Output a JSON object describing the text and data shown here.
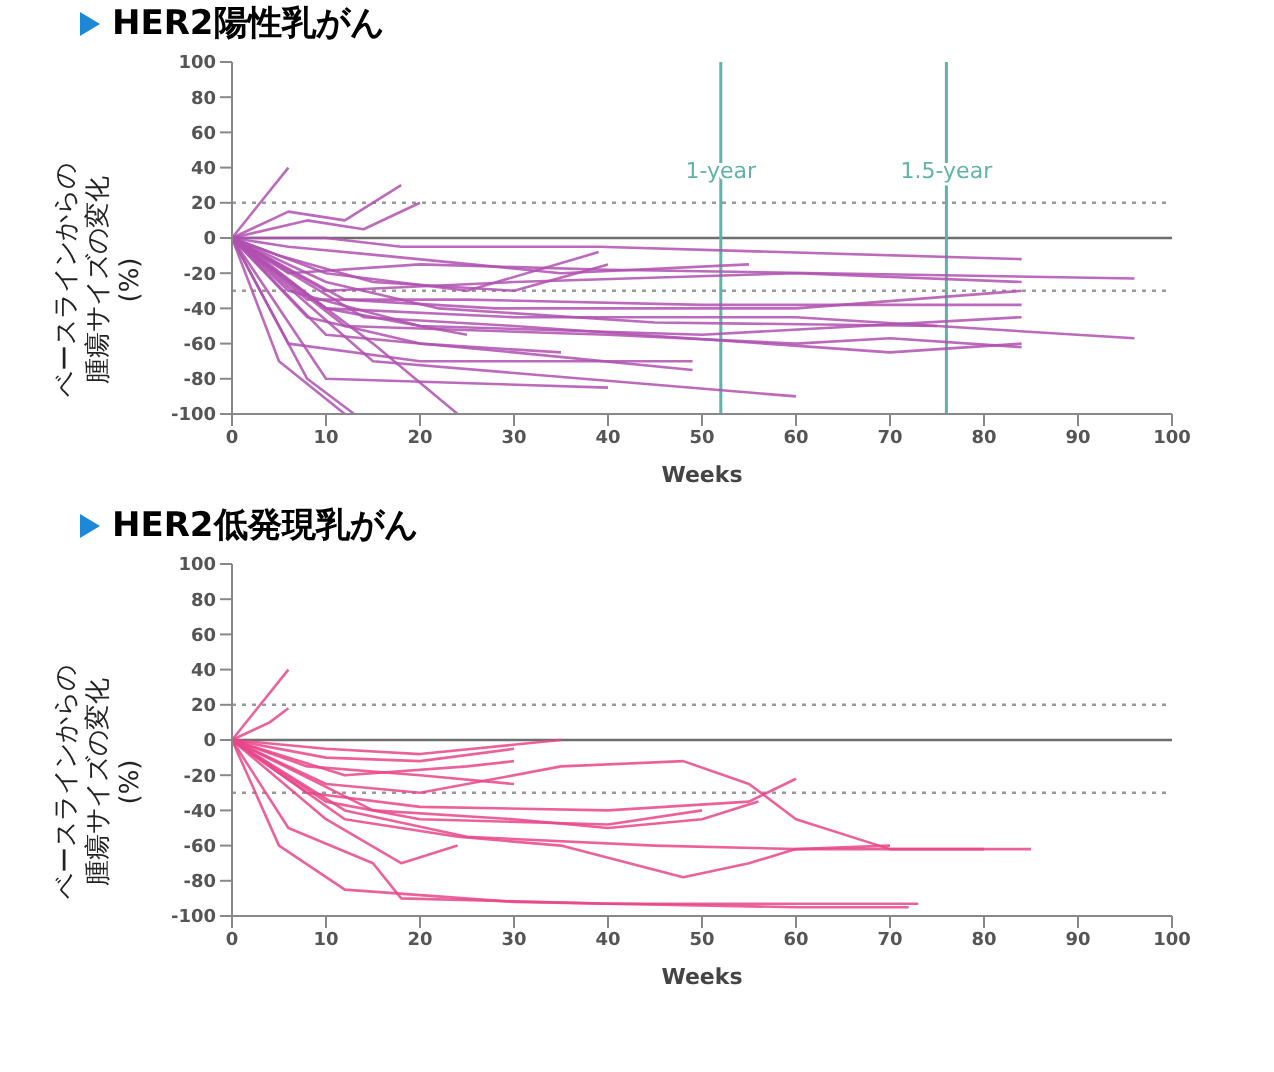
{
  "chart_data": [
    {
      "type": "line",
      "title": "HER2陽性乳がん",
      "xlabel": "Weeks",
      "ylabel": "ベースラインからの腫瘍サイズの変化(%)",
      "xlim": [
        0,
        100
      ],
      "ylim": [
        -100,
        100
      ],
      "xticks": [
        0,
        10,
        20,
        30,
        40,
        50,
        60,
        70,
        80,
        90,
        100
      ],
      "yticks": [
        -100,
        -80,
        -60,
        -40,
        -20,
        0,
        20,
        40,
        60,
        80,
        100
      ],
      "marker": "none",
      "line_style": "solid",
      "ref_lines": [
        {
          "axis": "y",
          "value": 0,
          "color": "#6e6e6e",
          "line_style": "solid"
        },
        {
          "axis": "y",
          "value": 20,
          "color": "#9a9a9a",
          "line_style": "dotted"
        },
        {
          "axis": "y",
          "value": -30,
          "color": "#9a9a9a",
          "line_style": "dotted"
        },
        {
          "axis": "x",
          "value": 52,
          "label": "1-year",
          "color": "#5fb3a8",
          "line_style": "solid"
        },
        {
          "axis": "x",
          "value": 76,
          "label": "1.5-year",
          "color": "#5fb3a8",
          "line_style": "solid"
        }
      ],
      "series": [
        {
          "color": "#b050b0",
          "x": [
            0,
            6
          ],
          "values": [
            0,
            40
          ]
        },
        {
          "color": "#b050b0",
          "x": [
            0,
            6,
            12,
            18
          ],
          "values": [
            0,
            15,
            10,
            30
          ]
        },
        {
          "color": "#b050b0",
          "x": [
            0,
            8,
            14,
            20
          ],
          "values": [
            0,
            10,
            5,
            20
          ]
        },
        {
          "color": "#b050b0",
          "x": [
            0,
            10,
            18,
            39,
            84
          ],
          "values": [
            0,
            0,
            -5,
            -5,
            -12
          ]
        },
        {
          "color": "#b050b0",
          "x": [
            0,
            6,
            20,
            40,
            96
          ],
          "values": [
            0,
            -20,
            -15,
            -18,
            -23
          ]
        },
        {
          "color": "#b050b0",
          "x": [
            0,
            10,
            30,
            60,
            84
          ],
          "values": [
            0,
            -30,
            -25,
            -20,
            -25
          ]
        },
        {
          "color": "#b050b0",
          "x": [
            0,
            8,
            25,
            50,
            84
          ],
          "values": [
            0,
            -35,
            -35,
            -38,
            -38
          ]
        },
        {
          "color": "#b050b0",
          "x": [
            0,
            10,
            30,
            60,
            96
          ],
          "values": [
            0,
            -40,
            -45,
            -45,
            -57
          ]
        },
        {
          "color": "#b050b0",
          "x": [
            0,
            12,
            40,
            60,
            70,
            84
          ],
          "values": [
            0,
            -50,
            -55,
            -60,
            -57,
            -62
          ]
        },
        {
          "color": "#b050b0",
          "x": [
            0,
            10,
            30,
            49
          ],
          "values": [
            0,
            -55,
            -65,
            -75
          ]
        },
        {
          "color": "#b050b0",
          "x": [
            0,
            5,
            12
          ],
          "values": [
            0,
            -70,
            -100
          ]
        },
        {
          "color": "#b050b0",
          "x": [
            0,
            8,
            13
          ],
          "values": [
            0,
            -80,
            -100
          ]
        },
        {
          "color": "#b050b0",
          "x": [
            0,
            15,
            24
          ],
          "values": [
            0,
            -60,
            -100
          ]
        },
        {
          "color": "#b050b0",
          "x": [
            0,
            15,
            60
          ],
          "values": [
            0,
            -70,
            -90
          ]
        },
        {
          "color": "#b050b0",
          "x": [
            0,
            10,
            40
          ],
          "values": [
            0,
            -80,
            -85
          ]
        },
        {
          "color": "#b050b0",
          "x": [
            0,
            6,
            20,
            50,
            84
          ],
          "values": [
            0,
            -30,
            -50,
            -55,
            -45
          ]
        },
        {
          "color": "#b050b0",
          "x": [
            0,
            5,
            15,
            30,
            40
          ],
          "values": [
            0,
            -10,
            -25,
            -30,
            -15
          ]
        },
        {
          "color": "#b050b0",
          "x": [
            0,
            10,
            25,
            39
          ],
          "values": [
            0,
            -20,
            -30,
            -8
          ]
        },
        {
          "color": "#b050b0",
          "x": [
            0,
            8,
            20,
            35
          ],
          "values": [
            0,
            -45,
            -60,
            -65
          ]
        },
        {
          "color": "#b050b0",
          "x": [
            0,
            12,
            28,
            60,
            84
          ],
          "values": [
            0,
            -35,
            -40,
            -40,
            -30
          ]
        },
        {
          "color": "#b050b0",
          "x": [
            0,
            6,
            20,
            49
          ],
          "values": [
            0,
            -60,
            -70,
            -70
          ]
        },
        {
          "color": "#b050b0",
          "x": [
            0,
            10,
            22,
            45,
            75
          ],
          "values": [
            0,
            -25,
            -40,
            -48,
            -50
          ]
        },
        {
          "color": "#b050b0",
          "x": [
            0,
            4,
            10,
            25
          ],
          "values": [
            0,
            -15,
            -40,
            -55
          ]
        },
        {
          "color": "#b050b0",
          "x": [
            0,
            14,
            30,
            70,
            84
          ],
          "values": [
            0,
            -45,
            -50,
            -65,
            -60
          ]
        },
        {
          "color": "#b050b0",
          "x": [
            0,
            6,
            16,
            35,
            55
          ],
          "values": [
            0,
            -5,
            -10,
            -20,
            -15
          ]
        }
      ]
    },
    {
      "type": "line",
      "title": "HER2低発現乳がん",
      "xlabel": "Weeks",
      "ylabel": "ベースラインからの腫瘍サイズの変化(%)",
      "xlim": [
        0,
        100
      ],
      "ylim": [
        -100,
        100
      ],
      "xticks": [
        0,
        10,
        20,
        30,
        40,
        50,
        60,
        70,
        80,
        90,
        100
      ],
      "yticks": [
        -100,
        -80,
        -60,
        -40,
        -20,
        0,
        20,
        40,
        60,
        80,
        100
      ],
      "marker": "none",
      "line_style": "solid",
      "ref_lines": [
        {
          "axis": "y",
          "value": 0,
          "color": "#6e6e6e",
          "line_style": "solid"
        },
        {
          "axis": "y",
          "value": 20,
          "color": "#9a9a9a",
          "line_style": "dotted"
        },
        {
          "axis": "y",
          "value": -30,
          "color": "#9a9a9a",
          "line_style": "dotted"
        }
      ],
      "series": [
        {
          "color": "#e8478a",
          "x": [
            0,
            6
          ],
          "values": [
            0,
            40
          ]
        },
        {
          "color": "#e8478a",
          "x": [
            0,
            4,
            6
          ],
          "values": [
            0,
            10,
            18
          ]
        },
        {
          "color": "#e8478a",
          "x": [
            0,
            10,
            20,
            35
          ],
          "values": [
            0,
            -5,
            -8,
            0
          ]
        },
        {
          "color": "#e8478a",
          "x": [
            0,
            10,
            20,
            30
          ],
          "values": [
            0,
            -10,
            -12,
            -5
          ]
        },
        {
          "color": "#e8478a",
          "x": [
            0,
            12,
            25,
            30
          ],
          "values": [
            0,
            -20,
            -15,
            -12
          ]
        },
        {
          "color": "#e8478a",
          "x": [
            0,
            8,
            20,
            30
          ],
          "values": [
            0,
            -15,
            -20,
            -25
          ]
        },
        {
          "color": "#e8478a",
          "x": [
            0,
            10,
            20,
            35,
            48,
            55,
            60,
            70,
            85
          ],
          "values": [
            0,
            -25,
            -30,
            -15,
            -12,
            -25,
            -45,
            -62,
            -62
          ]
        },
        {
          "color": "#e8478a",
          "x": [
            0,
            8,
            20,
            40,
            55,
            60
          ],
          "values": [
            0,
            -30,
            -38,
            -40,
            -35,
            -22
          ]
        },
        {
          "color": "#e8478a",
          "x": [
            0,
            10,
            20,
            40,
            50
          ],
          "values": [
            0,
            -35,
            -45,
            -48,
            -40
          ]
        },
        {
          "color": "#e8478a",
          "x": [
            0,
            12,
            25,
            45,
            60,
            70
          ],
          "values": [
            0,
            -40,
            -55,
            -60,
            -62,
            -60
          ]
        },
        {
          "color": "#e8478a",
          "x": [
            0,
            10,
            18,
            24
          ],
          "values": [
            0,
            -45,
            -70,
            -60
          ]
        },
        {
          "color": "#e8478a",
          "x": [
            0,
            6,
            15,
            18,
            40,
            73
          ],
          "values": [
            0,
            -50,
            -70,
            -90,
            -93,
            -93
          ]
        },
        {
          "color": "#e8478a",
          "x": [
            0,
            5,
            12,
            30,
            60,
            72
          ],
          "values": [
            0,
            -60,
            -85,
            -92,
            -95,
            -95
          ]
        },
        {
          "color": "#e8478a",
          "x": [
            0,
            12,
            24,
            35,
            48,
            55,
            60,
            80
          ],
          "values": [
            0,
            -45,
            -55,
            -60,
            -78,
            -70,
            -62,
            -62
          ]
        },
        {
          "color": "#e8478a",
          "x": [
            0,
            15,
            30,
            40,
            50,
            56
          ],
          "values": [
            0,
            -40,
            -45,
            -50,
            -45,
            -35
          ]
        }
      ]
    }
  ]
}
